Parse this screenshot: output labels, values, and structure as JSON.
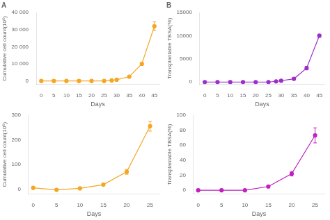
{
  "chart_data": [
    {
      "type": "line",
      "title": "A",
      "xlabel": "Days",
      "ylabel": "Cumulative cell count(10⁶)",
      "x": [
        0,
        5,
        10,
        15,
        20,
        25,
        28,
        30,
        35,
        40,
        45
      ],
      "series": [
        {
          "color": "#f5a623",
          "marker": "o",
          "line_style": "solid",
          "values": [
            0,
            0,
            0,
            0,
            0,
            0,
            300,
            700,
            2500,
            10000,
            32000
          ],
          "yerr": [
            0,
            0,
            0,
            0,
            0,
            0,
            100,
            150,
            400,
            800,
            2500
          ]
        }
      ],
      "xlim": [
        -2,
        47
      ],
      "xticks": [
        0,
        5,
        10,
        15,
        20,
        25,
        30,
        35,
        40,
        45
      ],
      "ylim": [
        -2000,
        40000
      ],
      "yticks": [
        0,
        {
          "value": 10000,
          "label": "10 000"
        },
        {
          "value": 20000,
          "label": "20 000"
        },
        {
          "value": 30000,
          "label": "30 000"
        },
        {
          "value": 40000,
          "label": "40 000"
        }
      ],
      "grid": false
    },
    {
      "type": "line",
      "title": "B",
      "xlabel": "Days",
      "ylabel": "Transplantable TBSA(%)",
      "x": [
        0,
        5,
        10,
        15,
        20,
        25,
        28,
        30,
        35,
        40,
        45
      ],
      "series": [
        {
          "color": "#9b30c8",
          "marker": "o",
          "line_style": "solid",
          "values": [
            0,
            0,
            0,
            0,
            0,
            0,
            150,
            300,
            700,
            3000,
            10000
          ],
          "yerr": [
            0,
            0,
            0,
            0,
            0,
            0,
            60,
            100,
            200,
            350,
            300
          ]
        }
      ],
      "xlim": [
        -2,
        47
      ],
      "xticks": [
        0,
        5,
        10,
        15,
        20,
        25,
        30,
        35,
        40,
        45
      ],
      "ylim": [
        -500,
        15000
      ],
      "yticks": [
        0,
        5000,
        10000,
        15000
      ],
      "grid": false
    },
    {
      "type": "line",
      "xlabel": "Days",
      "ylabel": "Cumulative cell count(10⁶)",
      "x": [
        0,
        5,
        10,
        15,
        20,
        25
      ],
      "series": [
        {
          "color": "#f5a623",
          "marker": "o",
          "line_style": "solid",
          "values": [
            5,
            -3,
            3,
            18,
            70,
            255
          ],
          "yerr": [
            2,
            1,
            1,
            4,
            10,
            20
          ]
        }
      ],
      "xlim": [
        -1,
        27
      ],
      "xticks": [
        0,
        5,
        10,
        15,
        20,
        25
      ],
      "ylim": [
        -20,
        300
      ],
      "yticks": [
        0,
        100,
        200,
        300
      ],
      "grid": false
    },
    {
      "type": "line",
      "xlabel": "Days",
      "ylabel": "Transplantable TBSA(%)",
      "x": [
        0,
        5,
        10,
        15,
        20,
        25
      ],
      "series": [
        {
          "color": "#c020c0",
          "marker": "o",
          "line_style": "solid",
          "values": [
            0,
            0,
            0,
            5,
            22,
            73
          ],
          "yerr": [
            0,
            0,
            0,
            1,
            3,
            10
          ]
        }
      ],
      "xlim": [
        -1,
        27
      ],
      "xticks": [
        0,
        5,
        10,
        15,
        20,
        25
      ],
      "ylim": [
        -5,
        100
      ],
      "yticks": [
        0,
        20,
        40,
        60,
        80,
        100
      ],
      "grid": false
    }
  ]
}
